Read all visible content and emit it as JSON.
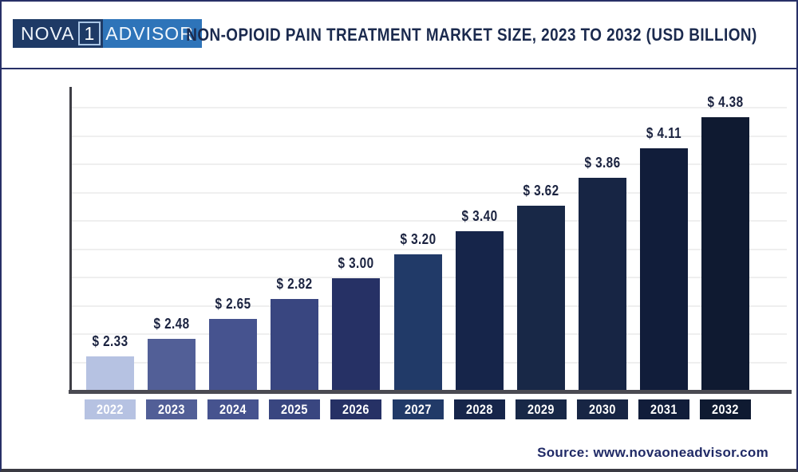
{
  "header": {
    "logo": {
      "part1": "NOVA",
      "part2": "1",
      "part3": "ADVISOR"
    },
    "title": "NON-OPIOID PAIN TREATMENT MARKET SIZE, 2023 TO 2032 (USD BILLION)"
  },
  "chart_data": {
    "type": "bar",
    "title": "Non-Opioid Pain Treatment Market Size, 2023 to 2032 (USD Billion)",
    "unit": "USD Billion",
    "categories": [
      "2022",
      "2023",
      "2024",
      "2025",
      "2026",
      "2027",
      "2028",
      "2029",
      "2030",
      "2031",
      "2032"
    ],
    "values": [
      2.33,
      2.48,
      2.65,
      2.82,
      3.0,
      3.2,
      3.4,
      3.62,
      3.86,
      4.11,
      4.38
    ],
    "value_labels": [
      "$ 2.33",
      "$ 2.48",
      "$ 2.65",
      "$ 2.82",
      "$ 3.00",
      "$ 3.20",
      "$ 3.40",
      "$ 3.62",
      "$ 3.86",
      "$ 4.11",
      "$ 4.38"
    ],
    "bar_colors": [
      "#b6c2e2",
      "#525f97",
      "#46538f",
      "#394680",
      "#263165",
      "#213a68",
      "#16254a",
      "#182847",
      "#172544",
      "#111d3a",
      "#0f1a31"
    ],
    "ylim": [
      2.04,
      4.64
    ],
    "grid": true,
    "gridline_count": 10,
    "legend": "none",
    "xlabel": "",
    "ylabel": ""
  },
  "footer": {
    "source": "Source: www.novaoneadvisor.com"
  }
}
